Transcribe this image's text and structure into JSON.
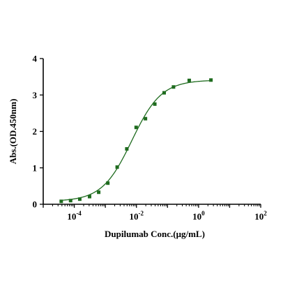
{
  "chart_data": {
    "type": "scatter",
    "xlabel": "Dupilumab Conc.(μg/mL)",
    "ylabel": "Abs.(OD.450nm)",
    "x_scale": "log",
    "xlim": [
      1e-05,
      100
    ],
    "ylim": [
      0,
      4
    ],
    "x_ticks": [
      {
        "value": 0.0001,
        "base": "10",
        "exp": "-4"
      },
      {
        "value": 0.01,
        "base": "10",
        "exp": "-2"
      },
      {
        "value": 1,
        "base": "10",
        "exp": "0"
      },
      {
        "value": 100,
        "base": "10",
        "exp": "2"
      }
    ],
    "y_ticks": [
      0,
      1,
      2,
      3,
      4
    ],
    "grid": false,
    "color": "#1e6b1e",
    "series": [
      {
        "marker": "square",
        "fit": "4PL",
        "x": [
          3.8e-05,
          7.6e-05,
          0.00015,
          0.00031,
          0.00061,
          0.0012,
          0.0024,
          0.0049,
          0.0098,
          0.0195,
          0.039,
          0.078,
          0.156,
          0.5,
          2.5
        ],
        "y": [
          0.08,
          0.1,
          0.14,
          0.21,
          0.33,
          0.58,
          1.02,
          1.52,
          2.11,
          2.35,
          2.75,
          3.06,
          3.22,
          3.4,
          3.41
        ]
      }
    ]
  }
}
